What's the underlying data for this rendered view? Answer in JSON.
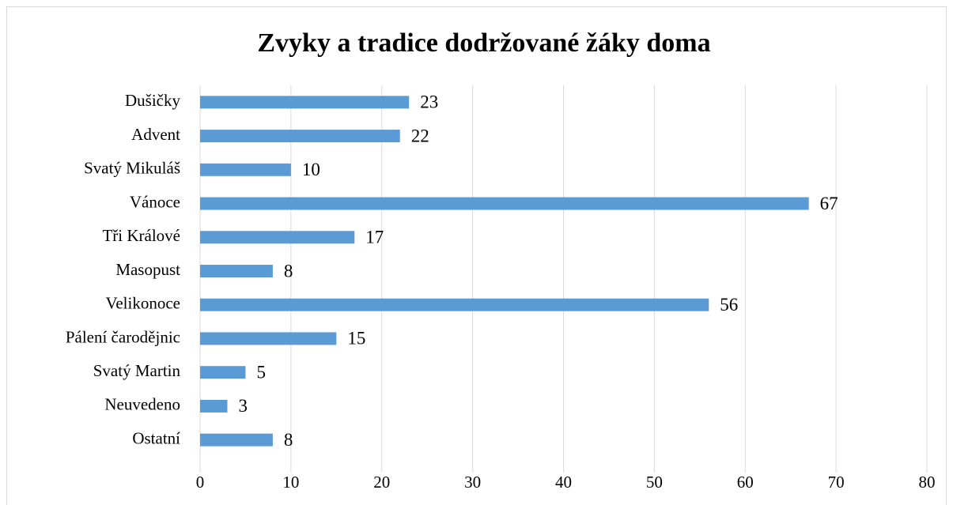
{
  "chart_data": {
    "type": "bar",
    "orientation": "horizontal",
    "title": "Zvyky a tradice dodržované žáky doma",
    "categories": [
      "Dušičky",
      "Advent",
      "Svatý Mikuláš",
      "Vánoce",
      "Tři Králové",
      "Masopust",
      "Velikonoce",
      "Pálení čarodějnic",
      "Svatý Martin",
      "Neuvedeno",
      "Ostatní"
    ],
    "values": [
      23,
      22,
      10,
      67,
      17,
      8,
      56,
      15,
      5,
      3,
      8
    ],
    "color": "#5b9bd5",
    "xlim": [
      0,
      80
    ],
    "xticks": [
      0,
      10,
      20,
      30,
      40,
      50,
      60,
      70,
      80
    ],
    "grid": true
  }
}
